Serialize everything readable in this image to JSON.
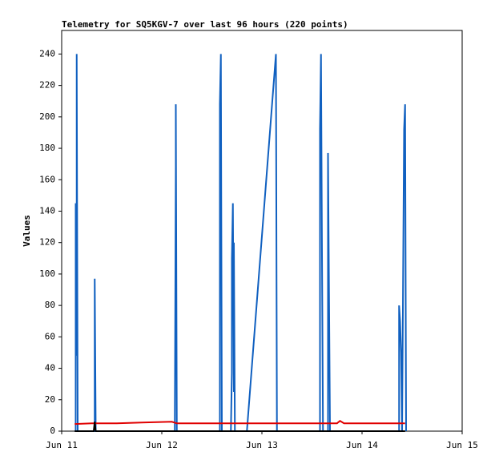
{
  "chart_data": {
    "type": "line",
    "title": "Telemetry for SQ5KGV-7 over last 96 hours (220 points)",
    "y_label": "Values",
    "xlim": [
      11,
      15
    ],
    "xticks": [
      {
        "value": 11,
        "label": "Jun 11"
      },
      {
        "value": 12,
        "label": "Jun 12"
      },
      {
        "value": 13,
        "label": "Jun 13"
      },
      {
        "value": 14,
        "label": "Jun 14"
      },
      {
        "value": 15,
        "label": "Jun 15"
      }
    ],
    "ylim": [
      0,
      255
    ],
    "yticks": [
      0,
      20,
      40,
      60,
      80,
      100,
      120,
      140,
      160,
      180,
      200,
      220,
      240
    ],
    "grid": false,
    "series": [
      {
        "color": "#1060c0",
        "x": [
          11.14,
          11.14,
          11.15,
          11.15,
          11.16,
          11.33,
          11.33,
          11.34,
          12.13,
          12.14,
          12.14,
          12.15,
          12.58,
          12.58,
          12.59,
          12.6,
          12.69,
          12.7,
          12.7,
          12.71,
          12.72,
          12.72,
          12.73,
          12.85,
          13.14,
          13.15,
          13.58,
          13.58,
          13.59,
          13.6,
          13.61,
          13.66,
          13.66,
          13.67,
          13.68,
          14.37,
          14.37,
          14.38,
          14.39,
          14.4,
          14.42,
          14.43,
          14.44
        ],
        "values": [
          0,
          145,
          48,
          240,
          0,
          0,
          97,
          0,
          0,
          168,
          208,
          0,
          0,
          208,
          240,
          0,
          0,
          37,
          110,
          145,
          25,
          120,
          0,
          0,
          240,
          0,
          0,
          192,
          240,
          112,
          0,
          0,
          177,
          88,
          0,
          0,
          80,
          70,
          50,
          0,
          192,
          208,
          0
        ]
      },
      {
        "color": "#e00000",
        "x": [
          11.13,
          11.3,
          11.55,
          11.8,
          12.1,
          12.15,
          12.5,
          13.0,
          13.5,
          13.75,
          13.78,
          13.82,
          14.0,
          14.43
        ],
        "values": [
          4.5,
          5,
          5,
          5.5,
          6,
          5,
          5,
          5,
          5,
          5,
          6.5,
          5,
          5,
          5
        ]
      },
      {
        "color": "#000000",
        "x": [
          11.13,
          11.32,
          11.33,
          11.34,
          14.43
        ],
        "values": [
          0,
          0,
          6,
          0,
          0
        ]
      }
    ]
  }
}
